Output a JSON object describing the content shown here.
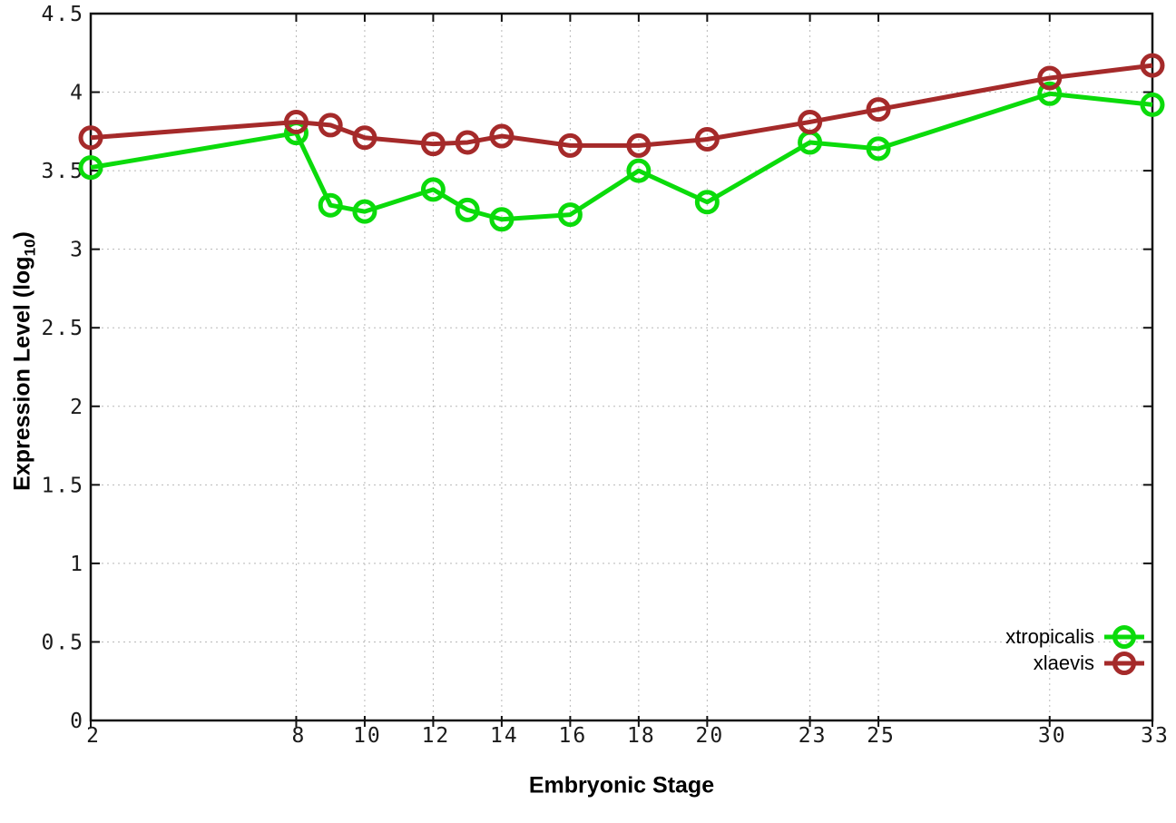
{
  "axes": {
    "x_label": "Embryonic Stage",
    "y_label_main": "Expression Level (log",
    "y_label_sub": "10",
    "y_label_close": ")"
  },
  "style": {
    "background": "#ffffff",
    "axis_color": "#111111",
    "grid_color": "#b8b8b8",
    "tick_label_color": "#1a1a1a"
  },
  "chart_data": {
    "type": "line",
    "title": "",
    "xlabel": "Embryonic Stage",
    "ylabel": "Expression Level (log10)",
    "xlim": [
      2,
      33
    ],
    "ylim": [
      0,
      4.5
    ],
    "x_ticks": [
      2,
      8,
      10,
      12,
      14,
      16,
      18,
      20,
      23,
      25,
      30,
      33
    ],
    "y_ticks": [
      0,
      0.5,
      1,
      1.5,
      2,
      2.5,
      3,
      3.5,
      4,
      4.5
    ],
    "grid": true,
    "legend_position": "bottom-right",
    "marker": "open-circle",
    "x": [
      2,
      8,
      9,
      10,
      12,
      13,
      14,
      16,
      18,
      20,
      23,
      25,
      30,
      33
    ],
    "series": [
      {
        "name": "xtropicalis",
        "color": "#0bdb0b",
        "values": [
          3.52,
          3.74,
          3.28,
          3.24,
          3.38,
          3.25,
          3.19,
          3.22,
          3.5,
          3.3,
          3.68,
          3.64,
          3.99,
          3.92
        ]
      },
      {
        "name": "xlaevis",
        "color": "#a52a2a",
        "values": [
          3.71,
          3.81,
          3.79,
          3.71,
          3.67,
          3.68,
          3.72,
          3.66,
          3.66,
          3.7,
          3.81,
          3.89,
          4.09,
          4.17
        ]
      }
    ]
  }
}
